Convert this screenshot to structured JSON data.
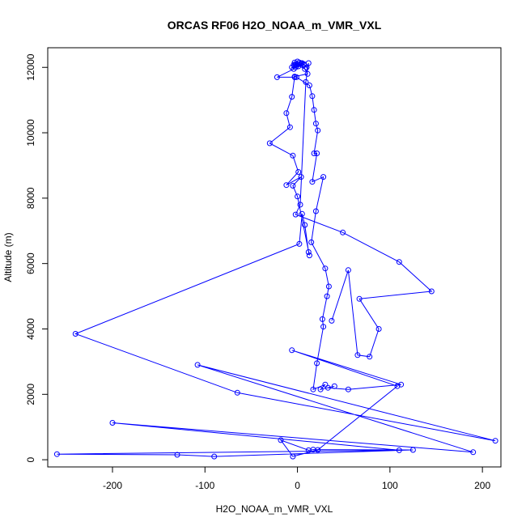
{
  "chart_data": {
    "type": "line",
    "title": "ORCAS RF06 H2O_NOAA_m_VMR_VXL",
    "xlabel": "H2O_NOAA_m_VMR_VXL",
    "ylabel": "Altitude (m)",
    "xlim": [
      -270,
      220
    ],
    "ylim": [
      -220,
      12600
    ],
    "xticks": [
      -200,
      -100,
      0,
      100,
      200
    ],
    "yticks": [
      0,
      2000,
      4000,
      6000,
      8000,
      10000,
      12000
    ],
    "grid": false,
    "marker": "open-circle",
    "series_color": "#0000ff",
    "series": [
      {
        "x": [
          -3,
          -1,
          2,
          5,
          7,
          4,
          1,
          -2,
          0,
          -4,
          -2,
          8,
          11,
          -3,
          -1,
          13,
          16,
          18,
          20,
          22,
          18,
          21,
          16,
          28,
          20,
          15,
          30,
          34,
          32,
          27,
          28,
          21,
          17,
          30,
          25,
          40,
          33,
          55,
          112,
          -6,
          108,
          22,
          -5,
          -18,
          12,
          17,
          125,
          -90,
          -130,
          -260,
          110,
          -200,
          190,
          -108,
          214,
          -65,
          -240,
          2,
          5,
          8,
          12,
          13,
          0,
          -5,
          4,
          -12,
          1,
          -5,
          -30,
          -8,
          -12,
          -6,
          -3,
          -22,
          -4,
          -6,
          -3,
          2,
          7,
          10,
          12,
          9,
          3,
          -2,
          49,
          110,
          145,
          67,
          88,
          78,
          65,
          55,
          37
        ],
        "y": [
          12150,
          12050,
          12100,
          12130,
          12070,
          12120,
          12030,
          12000,
          12180,
          12080,
          12100,
          11950,
          11800,
          11720,
          11700,
          11450,
          11120,
          10700,
          10280,
          10070,
          9370,
          9370,
          8500,
          8650,
          7600,
          6650,
          5850,
          5300,
          5000,
          4300,
          4070,
          2950,
          2150,
          2300,
          2150,
          2250,
          2200,
          2150,
          2300,
          3350,
          2250,
          300,
          100,
          600,
          290,
          310,
          300,
          100,
          150,
          170,
          290,
          1130,
          230,
          2900,
          580,
          2050,
          3850,
          6600,
          7520,
          7180,
          6350,
          6250,
          8050,
          8380,
          8650,
          8400,
          8800,
          9300,
          9680,
          10170,
          10600,
          11100,
          11700,
          11700,
          11950,
          12000,
          12050,
          12150,
          12100,
          12000,
          12130,
          11550,
          7800,
          7500,
          6950,
          6050,
          5150,
          4920,
          4000,
          3150,
          3200,
          5800,
          4250
        ]
      }
    ]
  }
}
